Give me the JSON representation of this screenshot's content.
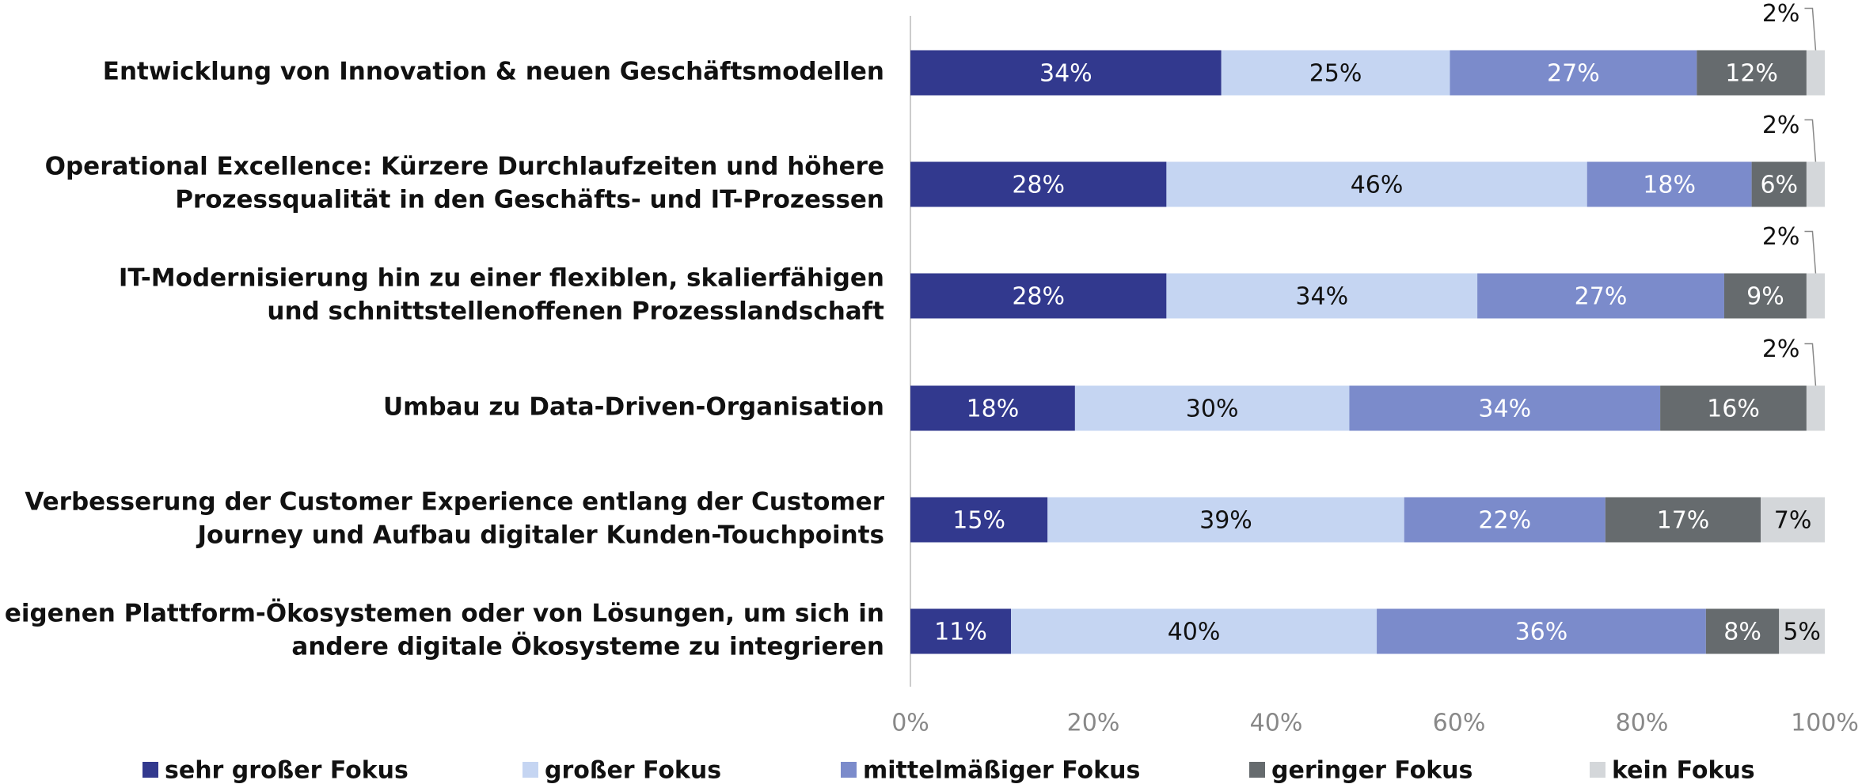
{
  "chart_data": {
    "type": "stacked_barh",
    "categories": [
      [
        "Entwicklung von Innovation & neuen Geschäftsmodellen"
      ],
      [
        "Operational Excellence: Kürzere Durchlaufzeiten und höhere",
        "Prozessqualität in den Geschäfts- und IT-Prozessen"
      ],
      [
        "IT-Modernisierung hin zu einer flexiblen, skalierfähigen",
        "und schnittstellenoffenen Prozesslandschaft"
      ],
      [
        "Umbau zu Data-Driven-Organisation"
      ],
      [
        "Verbesserung der Customer Experience entlang der Customer",
        "Journey und Aufbau digitaler Kunden-Touchpoints"
      ],
      [
        "Aufbau von eigenen Plattform-Ökosystemen oder von Lösungen, um sich in",
        "andere digitale Ökosysteme zu integrieren"
      ]
    ],
    "series": [
      {
        "name": "sehr großer Fokus",
        "color": "#32398e",
        "values": [
          34,
          28,
          28,
          18,
          15,
          11
        ],
        "value_labels": [
          "34%",
          "28%",
          "28%",
          "18%",
          "15%",
          "11%"
        ]
      },
      {
        "name": "großer Fokus",
        "color": "#c5d5f2",
        "values": [
          25,
          46,
          34,
          30,
          39,
          40
        ],
        "value_labels": [
          "25%",
          "46%",
          "34%",
          "30%",
          "39%",
          "40%"
        ]
      },
      {
        "name": "mittelmäßiger Fokus",
        "color": "#7b8bcb",
        "values": [
          27,
          18,
          27,
          34,
          22,
          36
        ],
        "value_labels": [
          "27%",
          "18%",
          "27%",
          "34%",
          "22%",
          "36%"
        ]
      },
      {
        "name": "geringer Fokus",
        "color": "#666b6e",
        "values": [
          12,
          6,
          9,
          16,
          17,
          8
        ],
        "value_labels": [
          "12%",
          "6%",
          "9%",
          "16%",
          "17%",
          "8%"
        ]
      },
      {
        "name": "kein Fokus",
        "color": "#d4d7da",
        "values": [
          2,
          2,
          2,
          2,
          7,
          5
        ],
        "value_labels": [
          "2%",
          "2%",
          "2%",
          "2%",
          "7%",
          "5%"
        ]
      }
    ],
    "xlim": [
      0,
      100
    ],
    "xticks": [
      {
        "value": 0,
        "label": "0%"
      },
      {
        "value": 20,
        "label": "20%"
      },
      {
        "value": 40,
        "label": "40%"
      },
      {
        "value": 60,
        "label": "60%"
      },
      {
        "value": 80,
        "label": "80%"
      },
      {
        "value": 100,
        "label": "100%"
      }
    ],
    "legend": "bottom"
  }
}
